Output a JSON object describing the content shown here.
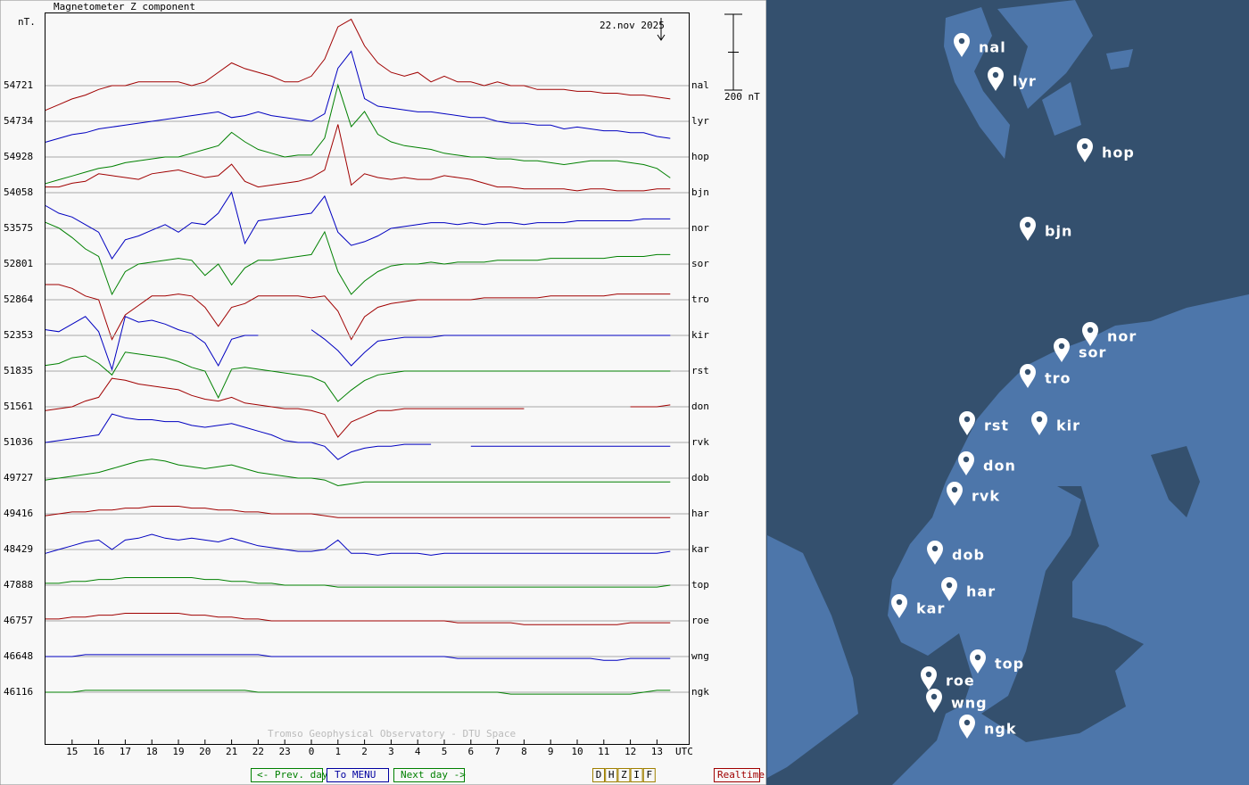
{
  "plot": {
    "title": "Magnetometer Z component",
    "unit": "nT.",
    "date": "22.nov 2025",
    "scale": {
      "value": 200,
      "label": "200 nT"
    },
    "credit": "Tromso Geophysical Observatory - DTU Space",
    "x_unit": "UTC",
    "hours": [
      "15",
      "16",
      "17",
      "18",
      "19",
      "20",
      "21",
      "22",
      "23",
      "0",
      "1",
      "2",
      "3",
      "4",
      "5",
      "6",
      "7",
      "8",
      "9",
      "10",
      "11",
      "12",
      "13"
    ],
    "stations": [
      {
        "code": "nal",
        "baseline": 54721,
        "color": "#a00000",
        "values": [
          -65,
          -50,
          -35,
          -25,
          -10,
          0,
          0,
          10,
          10,
          10,
          10,
          0,
          10,
          35,
          60,
          45,
          35,
          25,
          10,
          10,
          25,
          70,
          155,
          175,
          105,
          60,
          35,
          25,
          35,
          10,
          25,
          10,
          10,
          0,
          10,
          0,
          0,
          -10,
          -10,
          -10,
          -15,
          -15,
          -20,
          -20,
          -25,
          -25,
          -30,
          -35
        ]
      },
      {
        "code": "lyr",
        "baseline": 54734,
        "color": "#0000c0",
        "values": [
          -55,
          -45,
          -35,
          -30,
          -20,
          -15,
          -10,
          -5,
          0,
          5,
          10,
          15,
          20,
          25,
          10,
          15,
          25,
          15,
          10,
          5,
          0,
          20,
          140,
          185,
          60,
          40,
          35,
          30,
          25,
          25,
          20,
          15,
          10,
          10,
          0,
          -5,
          -5,
          -10,
          -10,
          -20,
          -15,
          -20,
          -25,
          -25,
          -30,
          -30,
          -40,
          -45
        ]
      },
      {
        "code": "hop",
        "baseline": 54928,
        "color": "#008000",
        "values": [
          -70,
          -60,
          -50,
          -40,
          -30,
          -25,
          -15,
          -10,
          -5,
          0,
          0,
          10,
          20,
          30,
          65,
          40,
          20,
          10,
          0,
          5,
          5,
          50,
          190,
          80,
          120,
          60,
          40,
          30,
          25,
          20,
          10,
          5,
          0,
          0,
          -5,
          -5,
          -10,
          -10,
          -15,
          -20,
          -15,
          -10,
          -10,
          -10,
          -15,
          -20,
          -30,
          -55
        ]
      },
      {
        "code": "bjn",
        "baseline": 54058,
        "color": "#a00000",
        "values": [
          15,
          15,
          25,
          30,
          50,
          45,
          40,
          35,
          50,
          55,
          60,
          50,
          40,
          45,
          75,
          30,
          15,
          20,
          25,
          30,
          40,
          60,
          180,
          20,
          50,
          40,
          35,
          40,
          35,
          35,
          45,
          40,
          35,
          25,
          15,
          15,
          10,
          10,
          10,
          10,
          5,
          10,
          10,
          5,
          5,
          5,
          10,
          10
        ]
      },
      {
        "code": "nor",
        "baseline": 53575,
        "color": "#0000c0",
        "values": [
          60,
          40,
          30,
          10,
          -10,
          -80,
          -30,
          -20,
          -5,
          10,
          -10,
          15,
          10,
          40,
          95,
          -40,
          20,
          25,
          30,
          35,
          40,
          85,
          -10,
          -45,
          -35,
          -20,
          0,
          5,
          10,
          15,
          15,
          10,
          15,
          10,
          15,
          15,
          10,
          15,
          15,
          15,
          20,
          20,
          20,
          20,
          20,
          25,
          25,
          25
        ]
      },
      {
        "code": "sor",
        "baseline": 52801,
        "color": "#008000",
        "values": [
          110,
          95,
          70,
          40,
          20,
          -80,
          -20,
          0,
          5,
          10,
          15,
          10,
          -30,
          0,
          -55,
          -10,
          10,
          10,
          15,
          20,
          25,
          85,
          -20,
          -80,
          -45,
          -20,
          -5,
          0,
          0,
          5,
          0,
          5,
          5,
          5,
          10,
          10,
          10,
          10,
          15,
          15,
          15,
          15,
          15,
          20,
          20,
          20,
          25,
          25
        ]
      },
      {
        "code": "tro",
        "baseline": 52864,
        "color": "#a00000",
        "values": [
          40,
          40,
          30,
          10,
          0,
          -105,
          -40,
          -15,
          10,
          10,
          15,
          10,
          -20,
          -70,
          -20,
          -10,
          10,
          10,
          10,
          10,
          5,
          10,
          -30,
          -105,
          -45,
          -20,
          -10,
          -5,
          0,
          0,
          0,
          0,
          0,
          5,
          5,
          5,
          5,
          5,
          10,
          10,
          10,
          10,
          10,
          15,
          15,
          15,
          15,
          15
        ]
      },
      {
        "code": "kir",
        "baseline": 52353,
        "color": "#0000c0",
        "values": [
          15,
          10,
          30,
          50,
          10,
          -90,
          50,
          35,
          40,
          30,
          15,
          5,
          -20,
          -80,
          -10,
          0,
          0,
          null,
          null,
          null,
          15,
          -10,
          -40,
          -80,
          -45,
          -15,
          -10,
          -5,
          -5,
          -5,
          0,
          0,
          0,
          0,
          0,
          0,
          0,
          0,
          0,
          0,
          0,
          0,
          0,
          0,
          0,
          0,
          0,
          0
        ]
      },
      {
        "code": "rst",
        "baseline": 51835,
        "color": "#008000",
        "values": [
          15,
          20,
          35,
          40,
          20,
          -10,
          50,
          45,
          40,
          35,
          25,
          10,
          0,
          -70,
          5,
          10,
          5,
          0,
          -5,
          -10,
          -15,
          -30,
          -80,
          -50,
          -25,
          -10,
          -5,
          0,
          0,
          0,
          0,
          0,
          0,
          0,
          0,
          0,
          0,
          0,
          0,
          0,
          0,
          0,
          0,
          0,
          0,
          0,
          0,
          0
        ]
      },
      {
        "code": "don",
        "baseline": 51561,
        "color": "#a00000",
        "values": [
          -10,
          -5,
          0,
          15,
          25,
          75,
          70,
          60,
          55,
          50,
          45,
          30,
          20,
          15,
          25,
          10,
          5,
          0,
          -5,
          -5,
          -10,
          -20,
          -80,
          -40,
          -25,
          -10,
          -10,
          -5,
          -5,
          -5,
          -5,
          -5,
          -5,
          -5,
          -5,
          -5,
          -5,
          null,
          null,
          null,
          null,
          null,
          null,
          null,
          0,
          0,
          0,
          5
        ]
      },
      {
        "code": "rvk",
        "baseline": 51036,
        "color": "#0000c0",
        "values": [
          0,
          5,
          10,
          15,
          20,
          75,
          65,
          60,
          60,
          55,
          55,
          45,
          40,
          45,
          50,
          40,
          30,
          20,
          5,
          0,
          0,
          -10,
          -45,
          -25,
          -15,
          -10,
          -10,
          -5,
          -5,
          -5,
          null,
          null,
          -10,
          -10,
          -10,
          -10,
          -10,
          -10,
          -10,
          -10,
          -10,
          -10,
          -10,
          -10,
          -10,
          -10,
          -10,
          -10
        ]
      },
      {
        "code": "dob",
        "baseline": 49727,
        "color": "#008000",
        "values": [
          -5,
          0,
          5,
          10,
          15,
          25,
          35,
          45,
          50,
          45,
          35,
          30,
          25,
          30,
          35,
          25,
          15,
          10,
          5,
          0,
          0,
          -5,
          -20,
          -15,
          -10,
          -10,
          -10,
          -10,
          -10,
          -10,
          -10,
          -10,
          -10,
          -10,
          -10,
          -10,
          -10,
          -10,
          -10,
          -10,
          -10,
          -10,
          -10,
          -10,
          -10,
          -10,
          -10,
          -10
        ]
      },
      {
        "code": "har",
        "baseline": 49416,
        "color": "#a00000",
        "values": [
          -5,
          0,
          5,
          5,
          10,
          10,
          15,
          15,
          20,
          20,
          20,
          15,
          15,
          10,
          10,
          5,
          5,
          0,
          0,
          0,
          0,
          -5,
          -10,
          -10,
          -10,
          -10,
          -10,
          -10,
          -10,
          -10,
          -10,
          -10,
          -10,
          -10,
          -10,
          -10,
          -10,
          -10,
          -10,
          -10,
          -10,
          -10,
          -10,
          -10,
          -10,
          -10,
          -10,
          -10
        ]
      },
      {
        "code": "kar",
        "baseline": 48429,
        "color": "#0000c0",
        "values": [
          -10,
          0,
          10,
          20,
          25,
          0,
          25,
          30,
          40,
          30,
          25,
          30,
          25,
          20,
          30,
          20,
          10,
          5,
          0,
          -5,
          -5,
          0,
          25,
          -10,
          -10,
          -15,
          -10,
          -10,
          -10,
          -15,
          -10,
          -10,
          -10,
          -10,
          -10,
          -10,
          -10,
          -10,
          -10,
          -10,
          -10,
          -10,
          -10,
          -10,
          -10,
          -10,
          -10,
          -5
        ]
      },
      {
        "code": "top",
        "baseline": 47888,
        "color": "#008000",
        "values": [
          5,
          5,
          10,
          10,
          15,
          15,
          20,
          20,
          20,
          20,
          20,
          20,
          15,
          15,
          10,
          10,
          5,
          5,
          0,
          0,
          0,
          0,
          -5,
          -5,
          -5,
          -5,
          -5,
          -5,
          -5,
          -5,
          -5,
          -5,
          -5,
          -5,
          -5,
          -5,
          -5,
          -5,
          -5,
          -5,
          -5,
          -5,
          -5,
          -5,
          -5,
          -5,
          -5,
          0
        ]
      },
      {
        "code": "roe",
        "baseline": 46757,
        "color": "#a00000",
        "values": [
          5,
          5,
          10,
          10,
          15,
          15,
          20,
          20,
          20,
          20,
          20,
          15,
          15,
          10,
          10,
          5,
          5,
          0,
          0,
          0,
          0,
          0,
          0,
          0,
          0,
          0,
          0,
          0,
          0,
          0,
          0,
          -5,
          -5,
          -5,
          -5,
          -5,
          -10,
          -10,
          -10,
          -10,
          -10,
          -10,
          -10,
          -10,
          -5,
          -5,
          -5,
          -5
        ]
      },
      {
        "code": "wng",
        "baseline": 46648,
        "color": "#0000c0",
        "values": [
          0,
          0,
          0,
          5,
          5,
          5,
          5,
          5,
          5,
          5,
          5,
          5,
          5,
          5,
          5,
          5,
          5,
          0,
          0,
          0,
          0,
          0,
          0,
          0,
          0,
          0,
          0,
          0,
          0,
          0,
          0,
          -5,
          -5,
          -5,
          -5,
          -5,
          -5,
          -5,
          -5,
          -5,
          -5,
          -5,
          -10,
          -10,
          -5,
          -5,
          -5,
          -5
        ]
      },
      {
        "code": "ngk",
        "baseline": 46116,
        "color": "#008000",
        "values": [
          0,
          0,
          0,
          5,
          5,
          5,
          5,
          5,
          5,
          5,
          5,
          5,
          5,
          5,
          5,
          5,
          0,
          0,
          0,
          0,
          0,
          0,
          0,
          0,
          0,
          0,
          0,
          0,
          0,
          0,
          0,
          0,
          0,
          0,
          0,
          -5,
          -5,
          -5,
          -5,
          -5,
          -5,
          -5,
          -5,
          -5,
          -5,
          0,
          5,
          5
        ]
      }
    ]
  },
  "nav": {
    "prev": "<- Prev. day",
    "menu": "To MENU",
    "next": "Next day ->",
    "components": [
      "D",
      "H",
      "Z",
      "I",
      "F"
    ],
    "realtime": "Realtime"
  }
}
